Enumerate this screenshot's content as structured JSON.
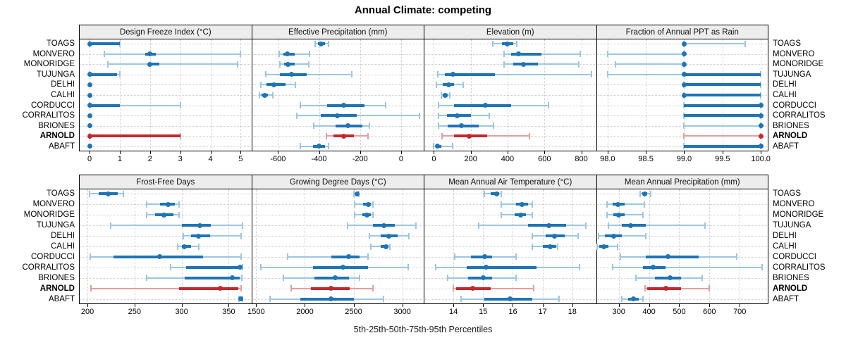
{
  "title": "Annual Climate: competing",
  "caption": "5th-25th-50th-75th-95th Percentiles",
  "colors": {
    "series": "#1f74b4",
    "series_light": "#9ec6e0",
    "highlight": "#bf2a2e",
    "highlight_light": "#dfa0a2",
    "grid": "#cccccc",
    "strip_bg": "#ededed",
    "border": "#000000"
  },
  "chart_data": {
    "type": "dotplot-percentiles",
    "title": "Annual Climate: competing",
    "caption": "5th-25th-50th-75th-95th Percentiles",
    "percentile_labels": [
      "5th",
      "25th",
      "50th",
      "75th",
      "95th"
    ],
    "legend_position": "none",
    "grid": "dotted",
    "stations": [
      "TOAGS",
      "MONVERO",
      "MONORIDGE",
      "TUJUNGA",
      "DELHI",
      "CALHI",
      "CORDUCCI",
      "CORRALITOS",
      "BRIONES",
      "ARNOLD",
      "ABAFT"
    ],
    "highlight": "ARNOLD",
    "panels": [
      {
        "title": "Design Freeze Index (°C)",
        "row": 0,
        "col": 0,
        "xlim": [
          -0.35,
          5.35
        ],
        "ticks": [
          0,
          1,
          2,
          3,
          4,
          5
        ],
        "tick_labels": [
          "0",
          "1",
          "2",
          "3",
          "4",
          "5"
        ],
        "values": [
          [
            0,
            0,
            0,
            1,
            1
          ],
          [
            0.5,
            1.85,
            2,
            2.2,
            5
          ],
          [
            0.6,
            2,
            2,
            2.3,
            4.9
          ],
          [
            0,
            0,
            0,
            0.9,
            1
          ],
          [
            0,
            0,
            0,
            0,
            0
          ],
          [
            0,
            0,
            0,
            0,
            0
          ],
          [
            0,
            0,
            0,
            1,
            3
          ],
          [
            0,
            0,
            0,
            0,
            0
          ],
          [
            0,
            0,
            0,
            0,
            0
          ],
          [
            0,
            0,
            0,
            3,
            3
          ],
          [
            0,
            0,
            0,
            0,
            0
          ]
        ]
      },
      {
        "title": "Effective Precipitation (mm)",
        "row": 0,
        "col": 1,
        "xlim": [
          -730,
          110
        ],
        "ticks": [
          -600,
          -400,
          -200,
          0
        ],
        "tick_labels": [
          "-600",
          "-400",
          "-200",
          "0"
        ],
        "values": [
          [
            -420,
            -405,
            -390,
            -372,
            -355
          ],
          [
            -595,
            -575,
            -555,
            -520,
            -445
          ],
          [
            -590,
            -570,
            -550,
            -520,
            -450
          ],
          [
            -660,
            -590,
            -535,
            -460,
            -240
          ],
          [
            -685,
            -655,
            -620,
            -565,
            -515
          ],
          [
            -690,
            -680,
            -665,
            -650,
            -625
          ],
          [
            -490,
            -360,
            -280,
            -180,
            -75
          ],
          [
            -510,
            -390,
            -310,
            -215,
            90
          ],
          [
            -425,
            -320,
            -260,
            -190,
            -155
          ],
          [
            -365,
            -330,
            -280,
            -230,
            -160
          ],
          [
            -490,
            -430,
            -400,
            -370,
            -355
          ]
        ]
      },
      {
        "title": "Elevation (m)",
        "row": 0,
        "col": 2,
        "xlim": [
          -55,
          880
        ],
        "ticks": [
          0,
          200,
          400,
          600,
          800
        ],
        "tick_labels": [
          "0",
          "200",
          "400",
          "600",
          "800"
        ],
        "values": [
          [
            320,
            370,
            400,
            430,
            450
          ],
          [
            380,
            420,
            460,
            585,
            795
          ],
          [
            380,
            430,
            485,
            565,
            785
          ],
          [
            20,
            60,
            105,
            330,
            855
          ],
          [
            15,
            50,
            80,
            110,
            160
          ],
          [
            40,
            50,
            60,
            75,
            85
          ],
          [
            25,
            110,
            280,
            420,
            620
          ],
          [
            25,
            70,
            125,
            200,
            300
          ],
          [
            25,
            75,
            150,
            245,
            325
          ],
          [
            45,
            110,
            190,
            290,
            520
          ],
          [
            0,
            10,
            20,
            40,
            100
          ]
        ]
      },
      {
        "title": "Fraction of Annual PPT as Rain",
        "row": 0,
        "col": 3,
        "xlim": [
          97.85,
          100.1
        ],
        "ticks": [
          98.0,
          98.5,
          99.0,
          99.5,
          100.0
        ],
        "tick_labels": [
          "98.0",
          "98.5",
          "99.0",
          "99.5",
          "100.0"
        ],
        "values": [
          [
            99,
            99,
            99,
            99,
            99.8
          ],
          [
            98,
            99,
            99,
            99,
            99
          ],
          [
            98.1,
            99,
            99,
            99,
            99
          ],
          [
            98,
            99,
            99,
            100,
            100
          ],
          [
            99,
            99,
            99,
            100,
            100
          ],
          [
            99,
            99,
            99,
            100,
            100
          ],
          [
            99,
            99,
            100,
            100,
            100
          ],
          [
            99,
            99,
            100,
            100,
            100
          ],
          [
            99,
            100,
            100,
            100,
            100
          ],
          [
            99,
            100,
            100,
            100,
            100
          ],
          [
            99,
            99,
            100,
            100,
            100
          ]
        ]
      },
      {
        "title": "Frost-Free Days",
        "row": 1,
        "col": 0,
        "xlim": [
          191,
          374
        ],
        "ticks": [
          200,
          250,
          300,
          350
        ],
        "tick_labels": [
          "200",
          "250",
          "300",
          "350"
        ],
        "values": [
          [
            202,
            212,
            222,
            232,
            238
          ],
          [
            263,
            277,
            286,
            293,
            297
          ],
          [
            263,
            272,
            281,
            291,
            297
          ],
          [
            225,
            300,
            319,
            331,
            365
          ],
          [
            302,
            310,
            318,
            330,
            363
          ],
          [
            296,
            300,
            303,
            310,
            318
          ],
          [
            203,
            228,
            277,
            323,
            363
          ],
          [
            288,
            305,
            362,
            364,
            365
          ],
          [
            263,
            303,
            354,
            362,
            364
          ],
          [
            204,
            297,
            341,
            360,
            363
          ],
          [
            361,
            362,
            363,
            364,
            365
          ]
        ]
      },
      {
        "title": "Growing Degree Days (°C)",
        "row": 1,
        "col": 1,
        "xlim": [
          1450,
          3220
        ],
        "ticks": [
          1500,
          2000,
          2500,
          3000
        ],
        "tick_labels": [
          "1500",
          "2000",
          "2500",
          "3000"
        ],
        "values": [
          [
            2505,
            2520,
            2535,
            2550,
            2555
          ],
          [
            2510,
            2600,
            2650,
            2680,
            2700
          ],
          [
            2510,
            2590,
            2640,
            2675,
            2700
          ],
          [
            2440,
            2700,
            2810,
            2920,
            3140
          ],
          [
            2660,
            2780,
            2860,
            2950,
            3070
          ],
          [
            2680,
            2780,
            2830,
            2860,
            2870
          ],
          [
            1820,
            2270,
            2450,
            2560,
            2650
          ],
          [
            1550,
            2080,
            2390,
            2650,
            3060
          ],
          [
            1780,
            2100,
            2310,
            2450,
            2560
          ],
          [
            1860,
            2060,
            2270,
            2460,
            2700
          ],
          [
            1640,
            1950,
            2270,
            2500,
            2810
          ]
        ]
      },
      {
        "title": "Mean Annual Air Temperature (°C)",
        "row": 1,
        "col": 2,
        "xlim": [
          13.0,
          18.8
        ],
        "ticks": [
          14,
          15,
          16,
          17,
          18
        ],
        "tick_labels": [
          "14",
          "15",
          "16",
          "17",
          "18"
        ],
        "values": [
          [
            15.05,
            15.25,
            15.45,
            15.55,
            15.6
          ],
          [
            15.6,
            16.1,
            16.3,
            16.5,
            16.65
          ],
          [
            15.6,
            16.05,
            16.25,
            16.45,
            16.65
          ],
          [
            14.85,
            16.5,
            17.2,
            17.8,
            18.45
          ],
          [
            16.65,
            17.1,
            17.4,
            17.75,
            18.2
          ],
          [
            16.65,
            17.0,
            17.25,
            17.45,
            17.5
          ],
          [
            14.05,
            14.6,
            15.05,
            15.3,
            16.1
          ],
          [
            13.4,
            14.45,
            15.1,
            16.8,
            18.25
          ],
          [
            13.8,
            14.5,
            15.0,
            15.3,
            16.1
          ],
          [
            14.0,
            14.1,
            14.65,
            15.25,
            16.7
          ],
          [
            14.25,
            15.05,
            15.9,
            16.65,
            17.55
          ]
        ]
      },
      {
        "title": "Mean Annual Precipitation (mm)",
        "row": 1,
        "col": 3,
        "xlim": [
          225,
          795
        ],
        "ticks": [
          300,
          400,
          500,
          600,
          700
        ],
        "tick_labels": [
          "300",
          "400",
          "500",
          "600",
          "700"
        ],
        "values": [
          [
            370,
            378,
            385,
            395,
            405
          ],
          [
            262,
            280,
            297,
            320,
            385
          ],
          [
            262,
            283,
            300,
            320,
            380
          ],
          [
            265,
            310,
            340,
            390,
            585
          ],
          [
            232,
            255,
            283,
            310,
            390
          ],
          [
            228,
            235,
            250,
            265,
            297
          ],
          [
            305,
            390,
            462,
            565,
            690
          ],
          [
            280,
            380,
            413,
            455,
            775
          ],
          [
            357,
            420,
            470,
            505,
            575
          ],
          [
            388,
            395,
            455,
            505,
            600
          ],
          [
            310,
            330,
            348,
            365,
            380
          ]
        ]
      }
    ]
  }
}
